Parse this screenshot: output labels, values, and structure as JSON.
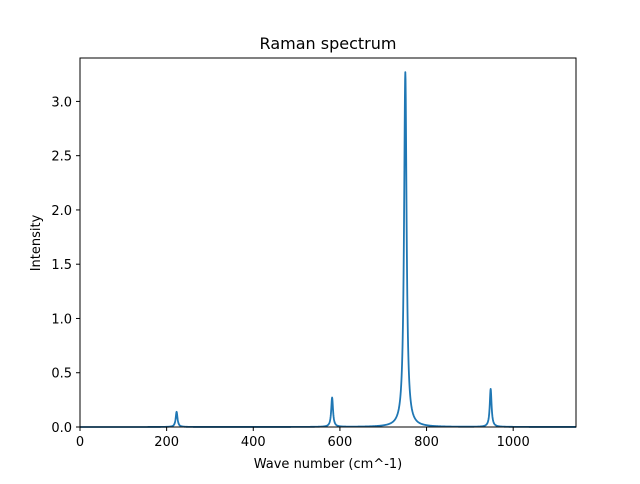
{
  "chart_data": {
    "type": "line",
    "title": "Raman spectrum",
    "xlabel": "Wave number (cm^-1)",
    "ylabel": "Intensity",
    "xlim": [
      0,
      1145
    ],
    "ylim": [
      0,
      3.4
    ],
    "xticks": [
      0,
      200,
      400,
      600,
      800,
      1000
    ],
    "xtick_labels": [
      "0",
      "200",
      "400",
      "600",
      "800",
      "1000"
    ],
    "yticks": [
      0.0,
      0.5,
      1.0,
      1.5,
      2.0,
      2.5,
      3.0
    ],
    "ytick_labels": [
      "0.0",
      "0.5",
      "1.0",
      "1.5",
      "2.0",
      "2.5",
      "3.0"
    ],
    "grid": false,
    "line_color": "#1f77b4",
    "peaks": [
      {
        "center": 223,
        "height": 0.14,
        "hwhm": 2.5
      },
      {
        "center": 582,
        "height": 0.27,
        "hwhm": 2.5
      },
      {
        "center": 751,
        "height": 3.27,
        "hwhm": 3.5
      },
      {
        "center": 948,
        "height": 0.35,
        "hwhm": 2.5
      }
    ]
  }
}
